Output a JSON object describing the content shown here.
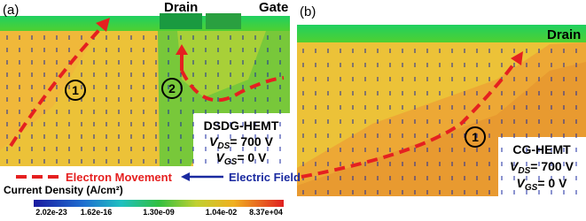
{
  "panel_a": {
    "label": "(a)",
    "drain": "Drain",
    "gate": "Gate",
    "path_1": "1",
    "path_2": "2",
    "device": "DSDG-HEMT",
    "vds": {
      "symbol": "V",
      "sub": "DS",
      "rest": "= 700 V"
    },
    "vgs": {
      "symbol": "V",
      "sub": "GS",
      "rest": "= 0 V"
    }
  },
  "panel_b": {
    "label": "(b)",
    "drain": "Drain",
    "path_1": "1",
    "device": "CG-HEMT",
    "vds": {
      "symbol": "V",
      "sub": "DS",
      "rest": "= 700 V"
    },
    "vgs": {
      "symbol": "V",
      "sub": "GS",
      "rest": "= 0 V"
    }
  },
  "legend": {
    "electron": "Electron Movement",
    "field": "Electric Field"
  },
  "colorbar": {
    "title": "Current Density (A/cm²)",
    "labels": [
      "2.02e-23",
      "1.62e-16",
      "1.30e-09",
      "1.04e-02",
      "8.37e+04"
    ]
  }
}
